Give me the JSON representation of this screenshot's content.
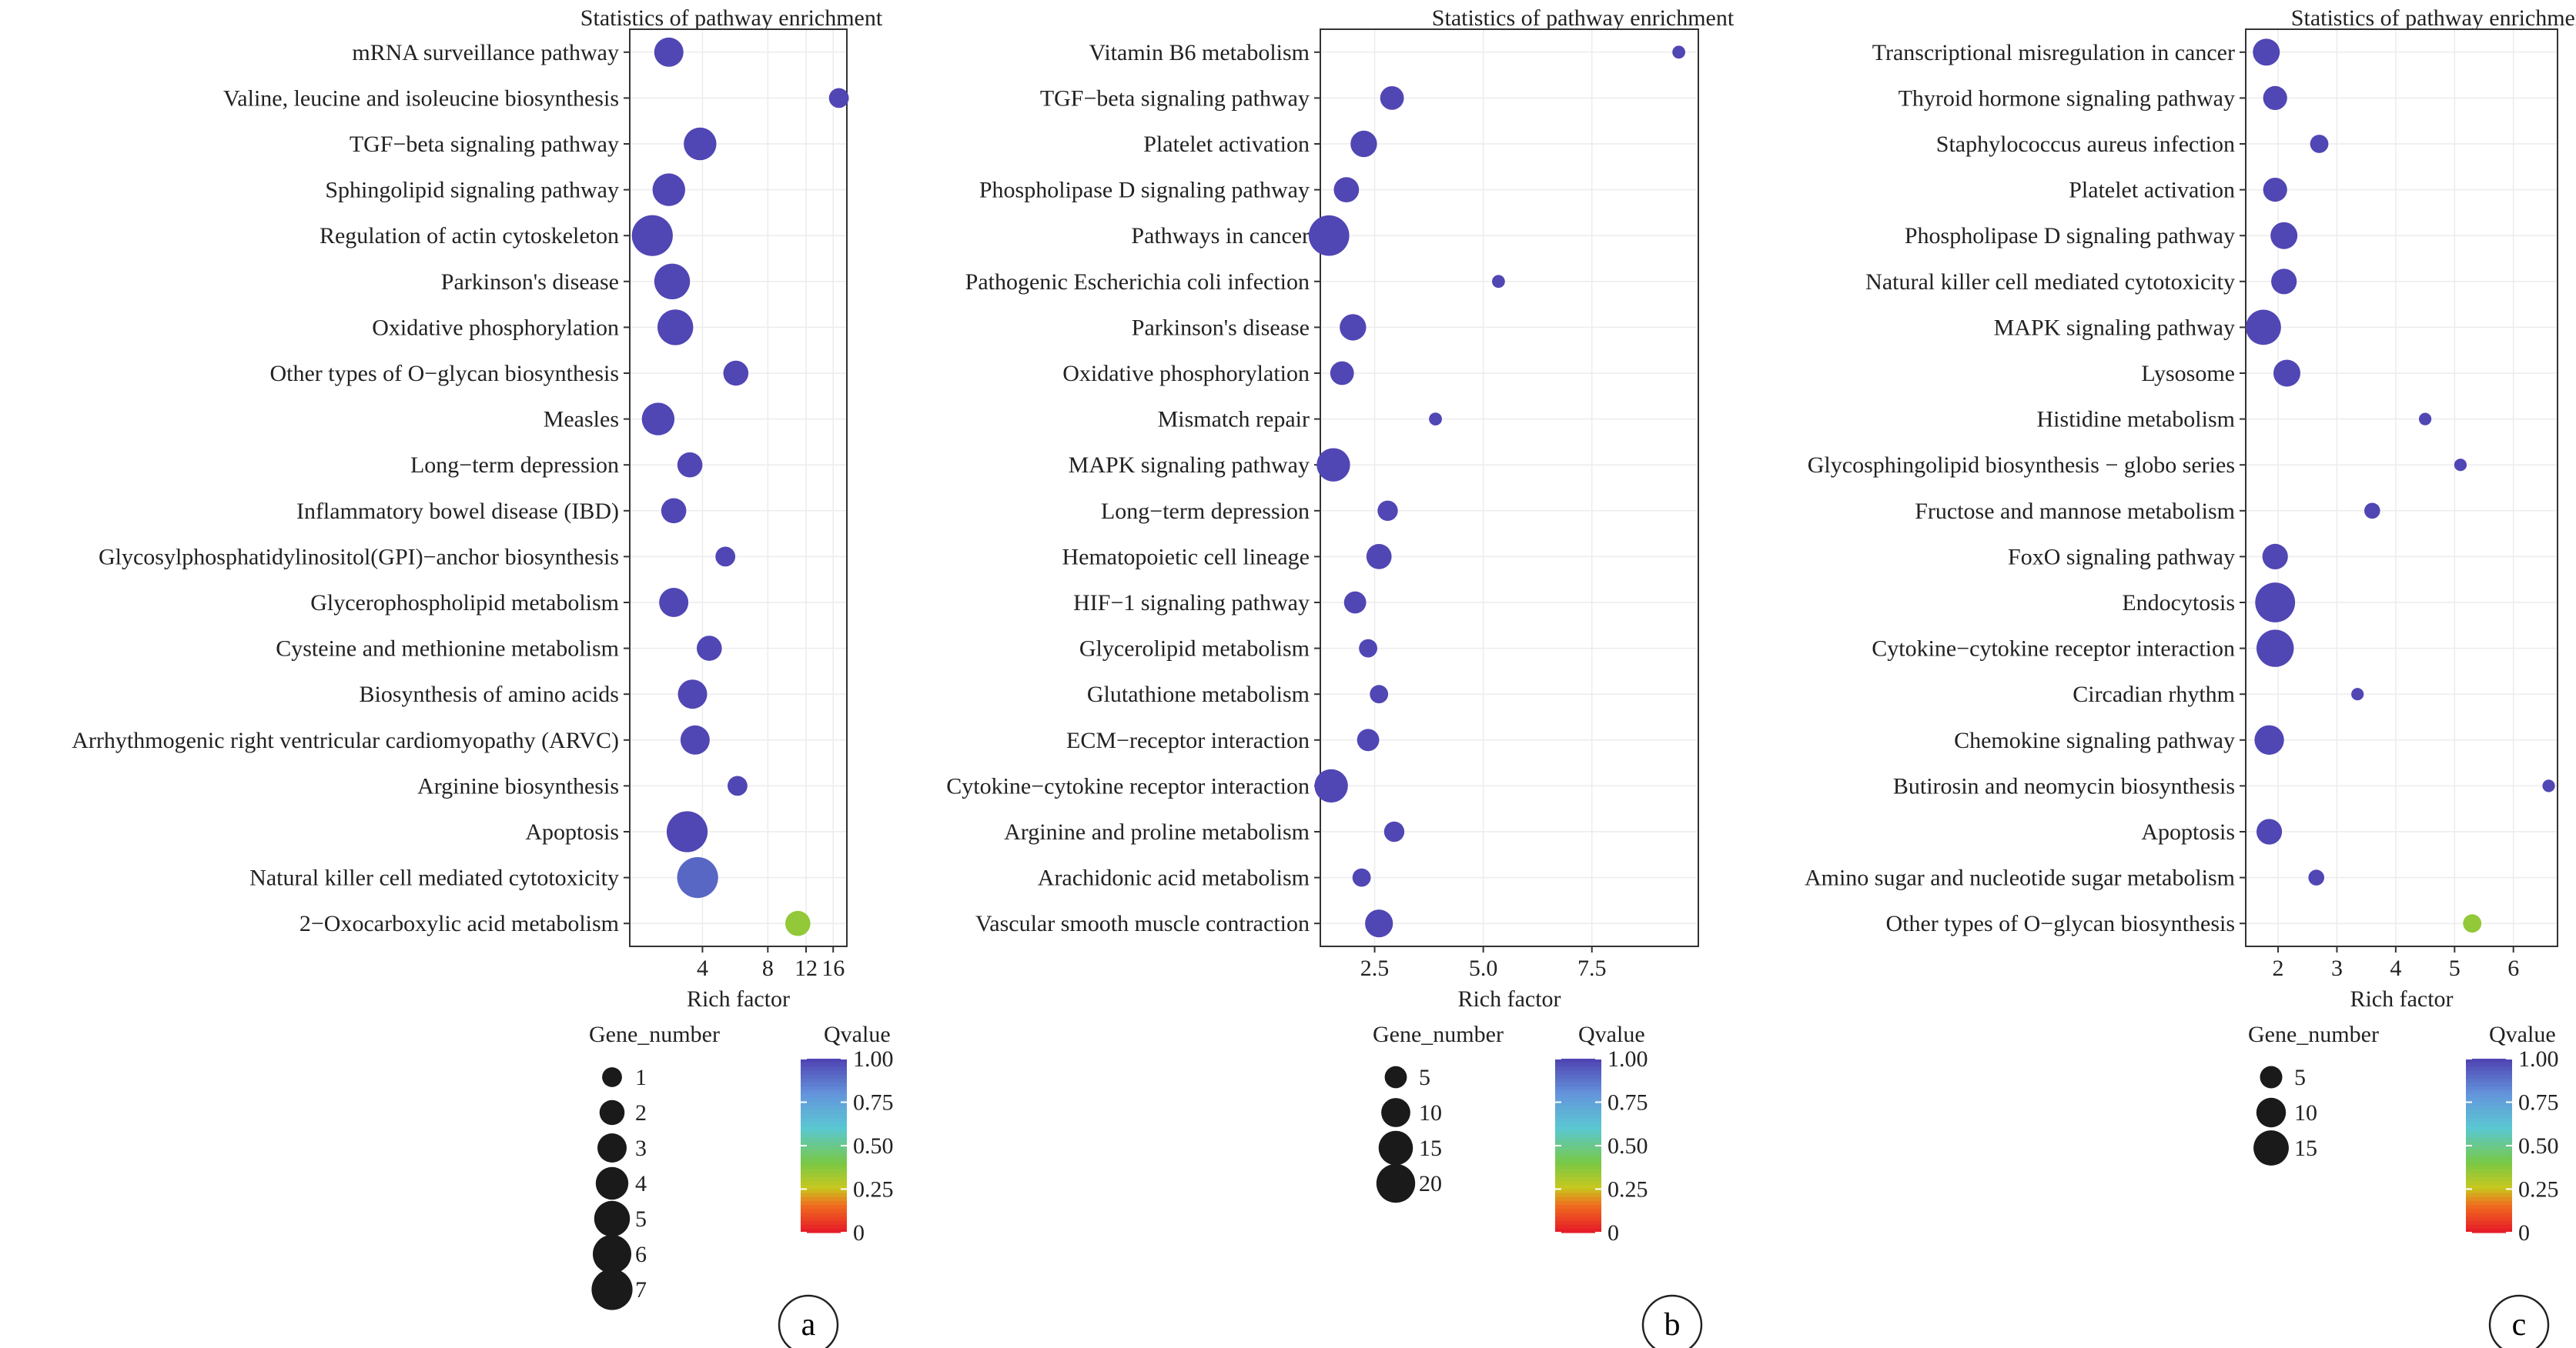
{
  "chart_data": [
    {
      "type": "scatter",
      "panel_label": "a",
      "title": "Statistics of pathway enrichment",
      "xlabel": "Rich factor",
      "x_scale": "log2",
      "x_ticks": [
        "4",
        "8",
        "12",
        "16"
      ],
      "x_tick_values": [
        4,
        8,
        12,
        16
      ],
      "xlim": [
        1.85,
        18.5
      ],
      "categories": [
        "mRNA surveillance pathway",
        "Valine, leucine and isoleucine biosynthesis",
        "TGF−beta signaling pathway",
        "Sphingolipid signaling pathway",
        "Regulation of actin cytoskeleton",
        "Parkinson's disease",
        "Oxidative phosphorylation",
        "Other types of O−glycan biosynthesis",
        "Measles",
        "Long−term depression",
        "Inflammatory bowel disease (IBD)",
        "Glycosylphosphatidylinositol(GPI)−anchor biosynthesis",
        "Glycerophospholipid metabolism",
        "Cysteine and methionine metabolism",
        "Biosynthesis of amino acids",
        "Arrhythmogenic right ventricular cardiomyopathy (ARVC)",
        "Arginine biosynthesis",
        "Apoptosis",
        "Natural killer cell mediated cytotoxicity",
        "2−Oxocarboxylic acid metabolism"
      ],
      "rich_factor": [
        2.8,
        17.0,
        3.9,
        2.8,
        2.35,
        2.9,
        3.0,
        5.7,
        2.5,
        3.5,
        2.95,
        5.1,
        2.95,
        4.3,
        3.6,
        3.7,
        5.8,
        3.4,
        3.8,
        11.0
      ],
      "gene_number": [
        3,
        1,
        4,
        4,
        7,
        5,
        5,
        2,
        4,
        2,
        2,
        1,
        3,
        2,
        3,
        3,
        1,
        7,
        7,
        2
      ],
      "qvalue": [
        1.0,
        1.0,
        1.0,
        1.0,
        1.0,
        1.0,
        1.0,
        1.0,
        1.0,
        1.0,
        1.0,
        1.0,
        1.0,
        1.0,
        1.0,
        1.0,
        1.0,
        1.0,
        0.92,
        0.35
      ],
      "size_legend_title": "Gene_number",
      "size_legend": [
        1,
        2,
        3,
        4,
        5,
        6,
        7
      ],
      "color_legend_title": "Qvalue",
      "color_legend_ticks": [
        "1.00",
        "0.75",
        "0.50",
        "0.25",
        "0"
      ],
      "legend_position": "bottom",
      "grid": true
    },
    {
      "type": "scatter",
      "panel_label": "b",
      "title": "Statistics of pathway enrichment",
      "xlabel": "Rich factor",
      "x_ticks": [
        "2.5",
        "5.0",
        "7.5"
      ],
      "x_tick_values": [
        2.5,
        5.0,
        7.5
      ],
      "xlim": [
        1.25,
        9.95
      ],
      "categories": [
        "Vitamin B6 metabolism",
        "TGF−beta signaling pathway",
        "Platelet activation",
        "Phospholipase D signaling pathway",
        "Pathways in cancer",
        "Pathogenic Escherichia coli infection",
        "Parkinson's disease",
        "Oxidative phosphorylation",
        "Mismatch repair",
        "MAPK signaling pathway",
        "Long−term depression",
        "Hematopoietic cell lineage",
        "HIF−1 signaling pathway",
        "Glycerolipid metabolism",
        "Glutathione metabolism",
        "ECM−receptor interaction",
        "Cytokine−cytokine receptor interaction",
        "Arginine and proline metabolism",
        "Arachidonic acid metabolism",
        "Vascular smooth muscle contraction"
      ],
      "rich_factor": [
        9.5,
        2.9,
        2.25,
        1.85,
        1.45,
        5.35,
        2.0,
        1.75,
        3.9,
        1.55,
        2.8,
        2.6,
        2.05,
        2.35,
        2.6,
        2.35,
        1.5,
        2.95,
        2.2,
        2.6
      ],
      "gene_number": [
        1,
        6,
        8,
        7,
        22,
        1,
        8,
        6,
        1,
        14,
        4,
        7,
        5,
        3,
        3,
        5,
        14,
        4,
        3,
        9
      ],
      "qvalue": [
        1.0,
        1.0,
        1.0,
        1.0,
        1.0,
        1.0,
        1.0,
        1.0,
        1.0,
        1.0,
        1.0,
        1.0,
        1.0,
        1.0,
        1.0,
        1.0,
        1.0,
        1.0,
        1.0,
        1.0
      ],
      "size_legend_title": "Gene_number",
      "size_legend": [
        5,
        10,
        15,
        20
      ],
      "color_legend_title": "Qvalue",
      "color_legend_ticks": [
        "1.00",
        "0.75",
        "0.50",
        "0.25",
        "0"
      ],
      "legend_position": "bottom",
      "grid": true
    },
    {
      "type": "scatter",
      "panel_label": "c",
      "title": "Statistics of pathway enrichment",
      "xlabel": "Rich factor",
      "x_ticks": [
        "2",
        "3",
        "4",
        "5",
        "6"
      ],
      "x_tick_values": [
        2,
        3,
        4,
        5,
        6
      ],
      "xlim": [
        1.45,
        6.75
      ],
      "categories": [
        "Transcriptional misregulation in cancer",
        "Thyroid hormone signaling pathway",
        "Staphylococcus aureus infection",
        "Platelet activation",
        "Phospholipase D signaling pathway",
        "Natural killer cell mediated cytotoxicity",
        "MAPK signaling pathway",
        "Lysosome",
        "Histidine metabolism",
        "Glycosphingolipid biosynthesis − globo series",
        "Fructose and mannose metabolism",
        "FoxO signaling pathway",
        "Endocytosis",
        "Cytokine−cytokine receptor interaction",
        "Circadian rhythm",
        "Chemokine signaling pathway",
        "Butirosin and neomycin biosynthesis",
        "Apoptosis",
        "Amino sugar and nucleotide sugar metabolism",
        "Other types of O−glycan biosynthesis"
      ],
      "rich_factor": [
        1.8,
        1.95,
        2.7,
        1.95,
        2.1,
        2.1,
        1.75,
        2.15,
        4.5,
        5.1,
        3.6,
        1.95,
        1.95,
        1.95,
        3.35,
        1.85,
        6.6,
        1.85,
        2.65,
        5.3
      ],
      "gene_number": [
        8,
        6,
        3,
        6,
        8,
        7,
        15,
        8,
        1,
        1,
        2,
        7,
        20,
        17,
        1,
        10,
        1,
        7,
        2,
        3
      ],
      "qvalue": [
        1.0,
        1.0,
        1.0,
        1.0,
        1.0,
        1.0,
        1.0,
        1.0,
        1.0,
        1.0,
        1.0,
        1.0,
        1.0,
        1.0,
        1.0,
        1.0,
        1.0,
        1.0,
        1.0,
        0.35
      ],
      "size_legend_title": "Gene_number",
      "size_legend": [
        5,
        10,
        15
      ],
      "color_legend_title": "Qvalue",
      "color_legend_ticks": [
        "1.00",
        "0.75",
        "0.50",
        "0.25",
        "0"
      ],
      "legend_position": "bottom",
      "grid": true
    }
  ]
}
